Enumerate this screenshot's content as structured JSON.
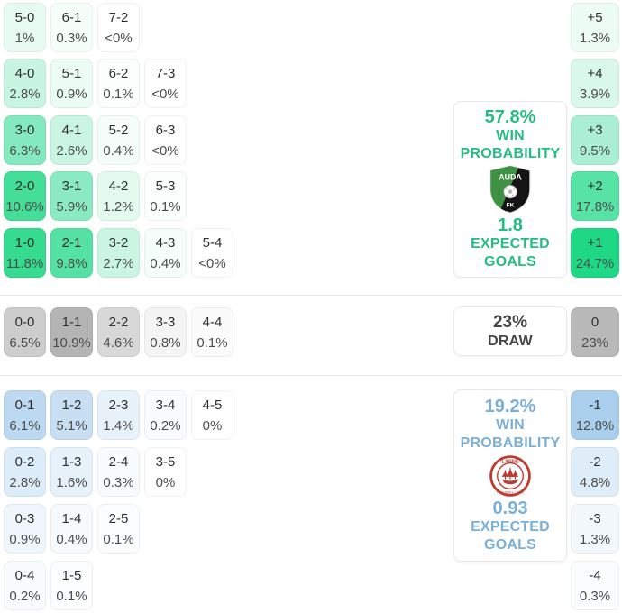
{
  "chart_data": {
    "type": "heatmap",
    "description": "Football match correct-score probability matrix with goal-difference distribution and win/draw summary panels",
    "home_color": "#25bd83",
    "away_color": "#7bafd8",
    "draw_color": "#474747",
    "home_rows": [
      [
        {
          "score": "5-0",
          "pct": "1%",
          "bg": "#e8fbf3"
        },
        {
          "score": "6-1",
          "pct": "0.3%",
          "bg": "#f6fefa"
        },
        {
          "score": "7-2",
          "pct": "<0%",
          "bg": "#ffffff"
        }
      ],
      [
        {
          "score": "4-0",
          "pct": "2.8%",
          "bg": "#c8f5e2"
        },
        {
          "score": "5-1",
          "pct": "0.9%",
          "bg": "#eafcf4"
        },
        {
          "score": "6-2",
          "pct": "0.1%",
          "bg": "#fbfefd"
        },
        {
          "score": "7-3",
          "pct": "<0%",
          "bg": "#ffffff"
        }
      ],
      [
        {
          "score": "3-0",
          "pct": "6.3%",
          "bg": "#84e9bf"
        },
        {
          "score": "4-1",
          "pct": "2.6%",
          "bg": "#cbf5e3"
        },
        {
          "score": "5-2",
          "pct": "0.4%",
          "bg": "#f4fdf9"
        },
        {
          "score": "6-3",
          "pct": "<0%",
          "bg": "#ffffff"
        }
      ],
      [
        {
          "score": "2-0",
          "pct": "10.6%",
          "bg": "#44de98"
        },
        {
          "score": "3-1",
          "pct": "5.9%",
          "bg": "#8aeac2"
        },
        {
          "score": "4-2",
          "pct": "1.2%",
          "bg": "#e3faef"
        },
        {
          "score": "5-3",
          "pct": "0.1%",
          "bg": "#fbfefd"
        }
      ],
      [
        {
          "score": "1-0",
          "pct": "11.8%",
          "bg": "#35dc90"
        },
        {
          "score": "2-1",
          "pct": "9.8%",
          "bg": "#55e1a3"
        },
        {
          "score": "3-2",
          "pct": "2.7%",
          "bg": "#caf5e3"
        },
        {
          "score": "4-3",
          "pct": "0.4%",
          "bg": "#f4fdf9"
        },
        {
          "score": "5-4",
          "pct": "<0%",
          "bg": "#ffffff"
        }
      ]
    ],
    "draw_row": [
      {
        "score": "0-0",
        "pct": "6.5%",
        "bg": "#cdcdcd"
      },
      {
        "score": "1-1",
        "pct": "10.9%",
        "bg": "#b4b4b4"
      },
      {
        "score": "2-2",
        "pct": "4.6%",
        "bg": "#d8d8d8"
      },
      {
        "score": "3-3",
        "pct": "0.8%",
        "bg": "#f4f4f4"
      },
      {
        "score": "4-4",
        "pct": "0.1%",
        "bg": "#fbfbfb"
      }
    ],
    "away_rows": [
      [
        {
          "score": "0-1",
          "pct": "6.1%",
          "bg": "#bcd9f1"
        },
        {
          "score": "1-2",
          "pct": "5.1%",
          "bg": "#c7def3"
        },
        {
          "score": "2-3",
          "pct": "1.4%",
          "bg": "#e8f2fb"
        },
        {
          "score": "3-4",
          "pct": "0.2%",
          "bg": "#f9fbfe"
        },
        {
          "score": "4-5",
          "pct": "0%",
          "bg": "#ffffff"
        }
      ],
      [
        {
          "score": "0-2",
          "pct": "2.8%",
          "bg": "#dcecf8"
        },
        {
          "score": "1-3",
          "pct": "1.6%",
          "bg": "#e6f1fa"
        },
        {
          "score": "2-4",
          "pct": "0.3%",
          "bg": "#f8fbfd"
        },
        {
          "score": "3-5",
          "pct": "0%",
          "bg": "#ffffff"
        }
      ],
      [
        {
          "score": "0-3",
          "pct": "0.9%",
          "bg": "#eff6fc"
        },
        {
          "score": "1-4",
          "pct": "0.4%",
          "bg": "#f6fafd"
        },
        {
          "score": "2-5",
          "pct": "0.1%",
          "bg": "#fbfdfe"
        }
      ],
      [
        {
          "score": "0-4",
          "pct": "0.2%",
          "bg": "#f9fbfe"
        },
        {
          "score": "1-5",
          "pct": "0.1%",
          "bg": "#fbfdfe"
        }
      ]
    ],
    "goal_diff_column": [
      {
        "label": "+5",
        "pct": "1.3%",
        "bg": "#eefcf6"
      },
      {
        "label": "+4",
        "pct": "3.9%",
        "bg": "#d9f8ea"
      },
      {
        "label": "+3",
        "pct": "9.5%",
        "bg": "#aaefd3"
      },
      {
        "label": "+2",
        "pct": "17.8%",
        "bg": "#57e2a6"
      },
      {
        "label": "+1",
        "pct": "24.7%",
        "bg": "#1ed886"
      },
      {
        "label": "0",
        "pct": "23%",
        "bg": "#b9b9b9"
      },
      {
        "label": "-1",
        "pct": "12.8%",
        "bg": "#aacfec"
      },
      {
        "label": "-2",
        "pct": "4.8%",
        "bg": "#dfedf9"
      },
      {
        "label": "-3",
        "pct": "1.3%",
        "bg": "#f3f8fd"
      },
      {
        "label": "-4",
        "pct": "0.3%",
        "bg": "#fbfcfe"
      }
    ],
    "summary": {
      "home": {
        "win_pct": "57.8%",
        "win_label_line1": "WIN",
        "win_label_line2": "PROBABILITY",
        "xg": "1.8",
        "xg_label_line1": "EXPECTED",
        "xg_label_line2": "GOALS",
        "team_crest": "auda-fk-crest",
        "crest_text_top": "AUDA",
        "crest_text_bottom": "FK"
      },
      "draw": {
        "pct": "23%",
        "label": "DRAW"
      },
      "away": {
        "win_pct": "19.2%",
        "win_label_line1": "WIN",
        "win_label_line2": "PROBABILITY",
        "xg": "0.93",
        "xg_label_line1": "EXPECTED",
        "xg_label_line2": "GOALS",
        "team_crest": "larne-fc-crest",
        "crest_text_top": "LARNE",
        "crest_text_bottom": "FOOTBALL CLUB"
      }
    }
  }
}
